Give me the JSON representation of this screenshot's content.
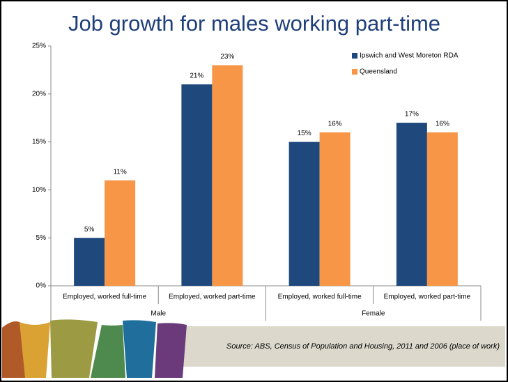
{
  "chart_data": {
    "type": "bar",
    "title": "Job growth for males working part-time",
    "categories": [
      "Employed, worked full-time",
      "Employed, worked part-time",
      "Employed, worked full-time",
      "Employed, worked part-time"
    ],
    "group_labels": [
      "Male",
      "Female"
    ],
    "series": [
      {
        "name": "Ipswich and West Moreton RDA",
        "color": "#1f497d",
        "values": [
          5,
          21,
          15,
          17
        ],
        "value_labels": [
          "5%",
          "21%",
          "15%",
          "17%"
        ]
      },
      {
        "name": "Queensland",
        "color": "#f79646",
        "values": [
          11,
          23,
          16,
          16
        ],
        "value_labels": [
          "11%",
          "23%",
          "16%",
          "16%"
        ]
      }
    ],
    "ylim": [
      0,
      25
    ],
    "yticks": [
      {
        "value": 0,
        "label": "0%"
      },
      {
        "value": 5,
        "label": "5%"
      },
      {
        "value": 10,
        "label": "10%"
      },
      {
        "value": 15,
        "label": "15%"
      },
      {
        "value": 20,
        "label": "20%"
      },
      {
        "value": 25,
        "label": "25%"
      }
    ],
    "grid": false,
    "legend": "top-right",
    "source": "Source: ABS, Census of Population and Housing, 2011 and 2006  (place of work)"
  }
}
